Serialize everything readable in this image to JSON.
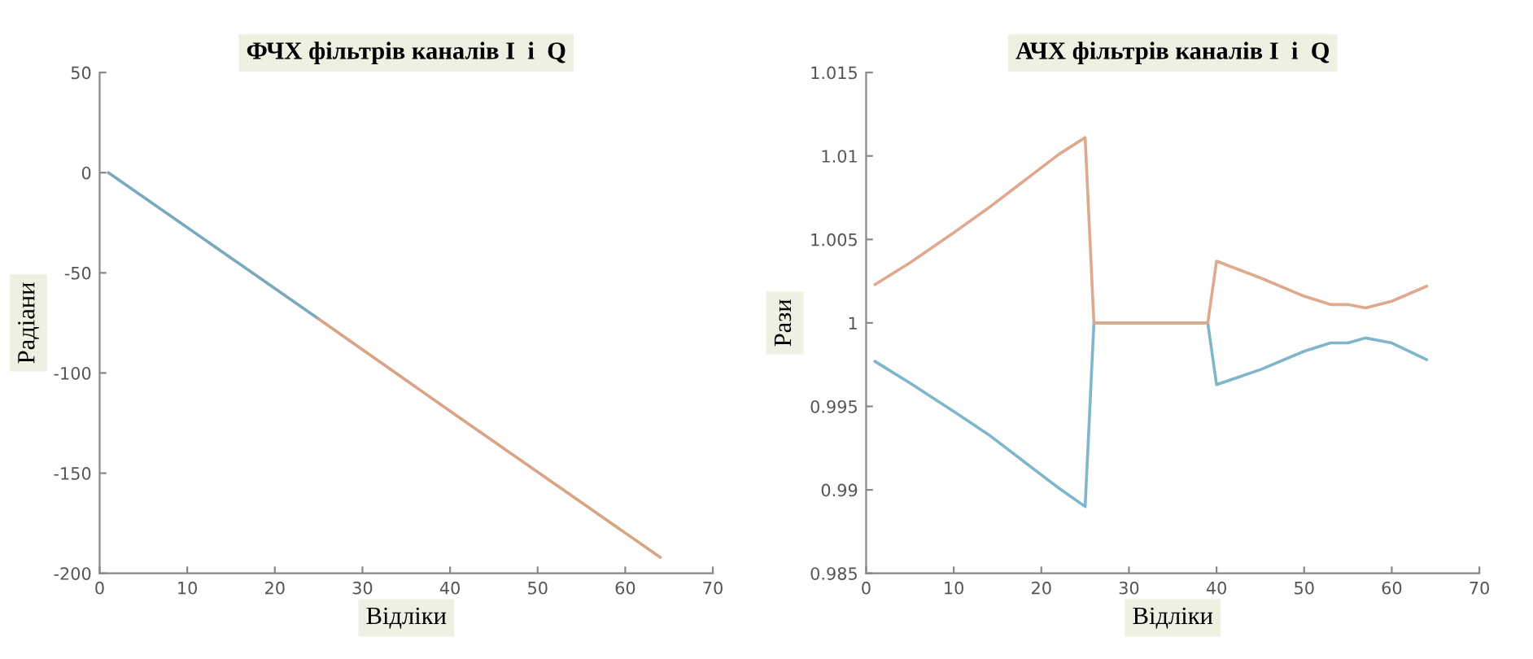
{
  "chart_data": [
    {
      "type": "line",
      "title": "ФЧХ фільтрів каналів I  і  Q",
      "xlabel": "Відліки",
      "ylabel": "Радіани",
      "xlim": [
        0,
        70
      ],
      "xticks": [
        0,
        10,
        20,
        30,
        40,
        50,
        60,
        70
      ],
      "ylim": [
        -200,
        50
      ],
      "yticks": [
        -200,
        -150,
        -100,
        -50,
        0,
        50
      ],
      "grid": false,
      "legend": false,
      "series": [
        {
          "color": "#7aa9bd",
          "x": [
            1,
            25
          ],
          "values": [
            0,
            -73
          ]
        },
        {
          "color": "#d9a384",
          "x": [
            25,
            40,
            64
          ],
          "values": [
            -73,
            -119,
            -192
          ]
        }
      ]
    },
    {
      "type": "line",
      "title": "АЧХ фільтрів каналів I  і  Q",
      "xlabel": "Відліки",
      "ylabel": "Рази",
      "xlim": [
        0,
        70
      ],
      "xticks": [
        0,
        10,
        20,
        30,
        40,
        50,
        60,
        70
      ],
      "ylim": [
        0.985,
        1.015
      ],
      "yticks": [
        0.985,
        0.99,
        0.995,
        1,
        1.005,
        1.01,
        1.015
      ],
      "grid": false,
      "legend": false,
      "series": [
        {
          "color": "#7fb6cc",
          "x": [
            1,
            5,
            10,
            14,
            18,
            22,
            25,
            26,
            39,
            40,
            45,
            50,
            53,
            55,
            57,
            60,
            64
          ],
          "values": [
            0.9977,
            0.9964,
            0.9947,
            0.9933,
            0.9917,
            0.9901,
            0.989,
            1.0,
            1.0,
            0.9963,
            0.9972,
            0.9983,
            0.9988,
            0.9988,
            0.9991,
            0.9988,
            0.9978
          ]
        },
        {
          "color": "#dea98c",
          "x": [
            1,
            5,
            10,
            14,
            18,
            22,
            25,
            26,
            39,
            40,
            45,
            50,
            53,
            55,
            57,
            60,
            64
          ],
          "values": [
            1.0023,
            1.0036,
            1.0054,
            1.0069,
            1.0085,
            1.0101,
            1.0111,
            1.0,
            1.0,
            1.0037,
            1.0027,
            1.0016,
            1.0011,
            1.0011,
            1.0009,
            1.0013,
            1.0022
          ]
        }
      ]
    }
  ]
}
